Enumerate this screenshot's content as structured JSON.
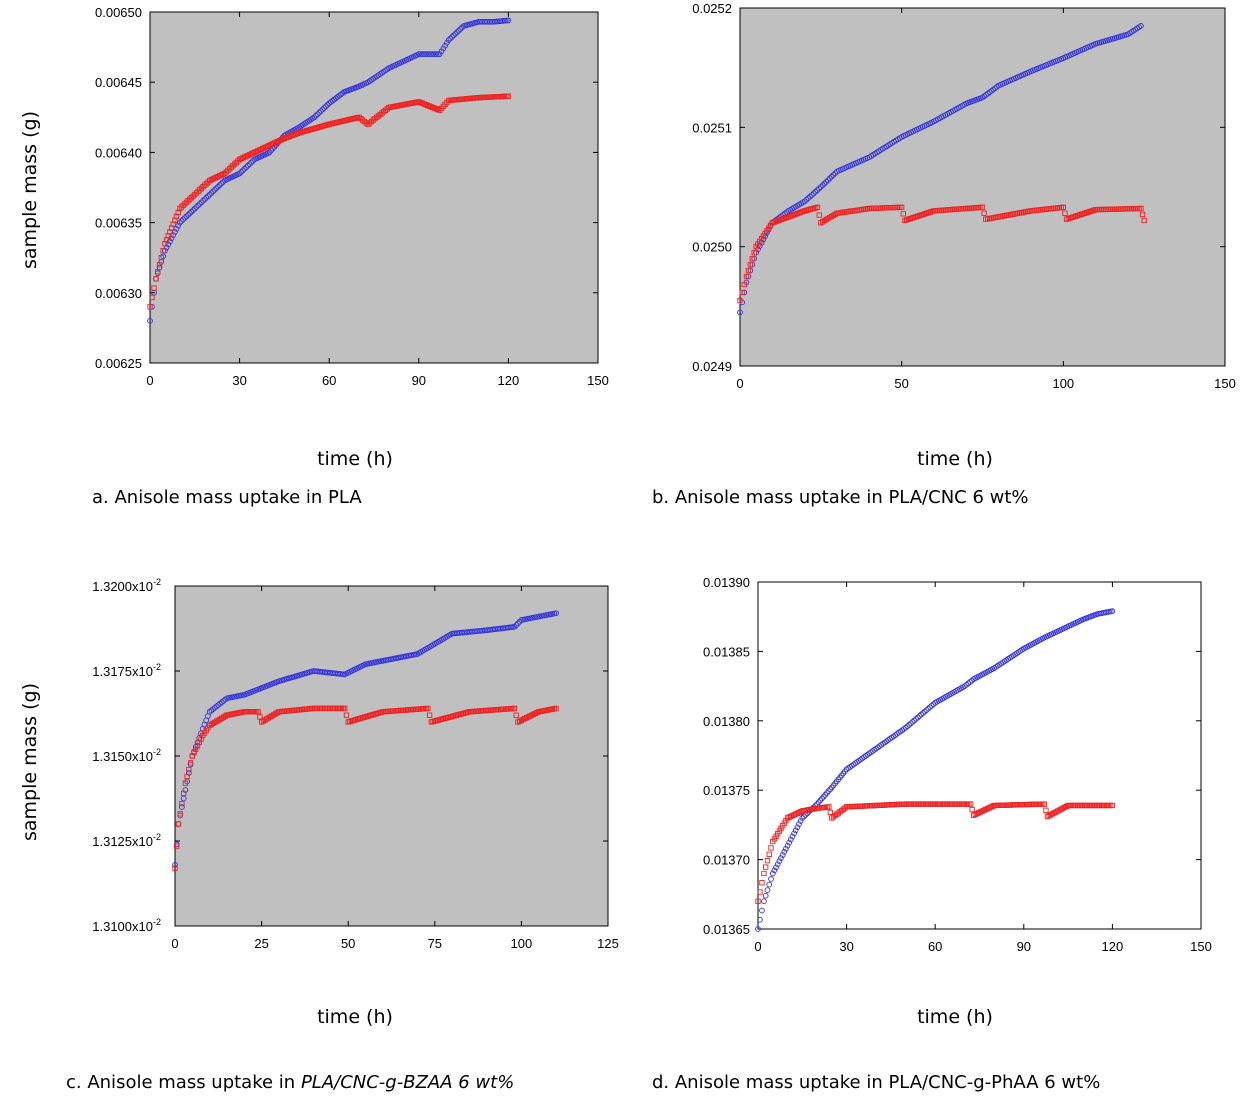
{
  "chart_data": [
    {
      "id": "a",
      "type": "scatter",
      "xlabel": "time (h)",
      "ylabel": "sample mass (g)",
      "xlim": [
        0,
        150
      ],
      "ylim": [
        0.00625,
        0.0065
      ],
      "xticks": [
        "0",
        "30",
        "60",
        "90",
        "120",
        "150"
      ],
      "yticks": [
        "0.00625",
        "0.00630",
        "0.00635",
        "0.00640",
        "0.00645",
        "0.00650"
      ],
      "background": "#c0c0c0",
      "caption_plain": "a. Anisole mass uptake in PLA",
      "caption_italic": "",
      "series": [
        {
          "color": "#3333dd",
          "marker": "circle",
          "points": [
            [
              0,
              0.00628
            ],
            [
              2,
              0.00631
            ],
            [
              5,
              0.00633
            ],
            [
              10,
              0.00635
            ],
            [
              15,
              0.00636
            ],
            [
              20,
              0.00637
            ],
            [
              25,
              0.00638
            ],
            [
              30,
              0.006385
            ],
            [
              35,
              0.006395
            ],
            [
              40,
              0.0064
            ],
            [
              45,
              0.006412
            ],
            [
              50,
              0.006418
            ],
            [
              55,
              0.006425
            ],
            [
              60,
              0.006435
            ],
            [
              65,
              0.006443
            ],
            [
              70,
              0.006447
            ],
            [
              73,
              0.00645
            ],
            [
              80,
              0.00646
            ],
            [
              90,
              0.00647
            ],
            [
              97,
              0.00647
            ],
            [
              100,
              0.00648
            ],
            [
              105,
              0.00649
            ],
            [
              110,
              0.006493
            ],
            [
              115,
              0.006493
            ],
            [
              120,
              0.006494
            ]
          ]
        },
        {
          "color": "#ee2222",
          "marker": "square",
          "points": [
            [
              0,
              0.00629
            ],
            [
              2,
              0.00631
            ],
            [
              5,
              0.006335
            ],
            [
              10,
              0.00636
            ],
            [
              15,
              0.00637
            ],
            [
              20,
              0.00638
            ],
            [
              25,
              0.006385
            ],
            [
              30,
              0.006395
            ],
            [
              35,
              0.0064
            ],
            [
              40,
              0.006405
            ],
            [
              45,
              0.00641
            ],
            [
              50,
              0.006414
            ],
            [
              60,
              0.00642
            ],
            [
              70,
              0.006425
            ],
            [
              73,
              0.00642
            ],
            [
              80,
              0.006432
            ],
            [
              90,
              0.006436
            ],
            [
              97,
              0.00643
            ],
            [
              100,
              0.006437
            ],
            [
              110,
              0.006439
            ],
            [
              120,
              0.00644
            ]
          ]
        }
      ]
    },
    {
      "id": "b",
      "type": "scatter",
      "xlabel": "time (h)",
      "ylabel": "",
      "xlim": [
        0,
        150
      ],
      "ylim": [
        0.0249,
        0.0252
      ],
      "xticks": [
        "0",
        "50",
        "100",
        "150"
      ],
      "yticks": [
        "0.0249",
        "0.0250",
        "0.0251",
        "0.0252"
      ],
      "background": "#c0c0c0",
      "caption_plain": "b. Anisole mass uptake in PLA/CNC 6 wt%",
      "caption_italic": "",
      "series": [
        {
          "color": "#3333dd",
          "marker": "circle",
          "points": [
            [
              0,
              0.024945
            ],
            [
              2,
              0.02497
            ],
            [
              5,
              0.024995
            ],
            [
              10,
              0.02502
            ],
            [
              15,
              0.02503
            ],
            [
              20,
              0.025038
            ],
            [
              25,
              0.02505
            ],
            [
              30,
              0.025063
            ],
            [
              40,
              0.025075
            ],
            [
              50,
              0.025092
            ],
            [
              60,
              0.025105
            ],
            [
              70,
              0.02512
            ],
            [
              75,
              0.025125
            ],
            [
              80,
              0.025135
            ],
            [
              90,
              0.025147
            ],
            [
              100,
              0.025158
            ],
            [
              110,
              0.02517
            ],
            [
              120,
              0.025178
            ],
            [
              124,
              0.025185
            ]
          ]
        },
        {
          "color": "#ee2222",
          "marker": "square",
          "points": [
            [
              0,
              0.024955
            ],
            [
              2,
              0.024975
            ],
            [
              5,
              0.025
            ],
            [
              10,
              0.02502
            ],
            [
              15,
              0.025025
            ],
            [
              20,
              0.02503
            ],
            [
              24,
              0.025033
            ],
            [
              25,
              0.02502
            ],
            [
              30,
              0.025028
            ],
            [
              40,
              0.025032
            ],
            [
              50,
              0.025033
            ],
            [
              51,
              0.025022
            ],
            [
              60,
              0.02503
            ],
            [
              75,
              0.025033
            ],
            [
              76,
              0.025023
            ],
            [
              90,
              0.02503
            ],
            [
              100,
              0.025033
            ],
            [
              101,
              0.025023
            ],
            [
              110,
              0.025031
            ],
            [
              124,
              0.025032
            ],
            [
              125,
              0.025022
            ]
          ]
        }
      ]
    },
    {
      "id": "c",
      "type": "scatter",
      "xlabel": "time (h)",
      "ylabel": "sample mass (g)",
      "xlim": [
        0,
        125
      ],
      "ylim": [
        0.0131,
        0.0132
      ],
      "xticks": [
        "0",
        "25",
        "50",
        "75",
        "100",
        "125"
      ],
      "yticks": [
        "1.3100x10",
        "1.3125x10",
        "1.3150x10",
        "1.3175x10",
        "1.3200x10"
      ],
      "ytick_exp": "-2",
      "background": "#c0c0c0",
      "caption_plain": "c. Anisole mass uptake in ",
      "caption_italic": "PLA/CNC-g-BZAA 6 wt%",
      "series": [
        {
          "color": "#3333dd",
          "marker": "circle",
          "points": [
            [
              0,
              0.013118
            ],
            [
              1,
              0.01313
            ],
            [
              3,
              0.01314
            ],
            [
              5,
              0.01315
            ],
            [
              8,
              0.013158
            ],
            [
              10,
              0.013163
            ],
            [
              15,
              0.013167
            ],
            [
              20,
              0.013168
            ],
            [
              25,
              0.01317
            ],
            [
              30,
              0.013172
            ],
            [
              40,
              0.013175
            ],
            [
              49,
              0.013174
            ],
            [
              55,
              0.013177
            ],
            [
              60,
              0.013178
            ],
            [
              70,
              0.01318
            ],
            [
              75,
              0.013183
            ],
            [
              80,
              0.013186
            ],
            [
              90,
              0.013187
            ],
            [
              98,
              0.013188
            ],
            [
              100,
              0.01319
            ],
            [
              105,
              0.013191
            ],
            [
              110,
              0.013192
            ]
          ]
        },
        {
          "color": "#ee2222",
          "marker": "square",
          "points": [
            [
              0,
              0.013117
            ],
            [
              1,
              0.01313
            ],
            [
              3,
              0.013142
            ],
            [
              5,
              0.01315
            ],
            [
              8,
              0.013156
            ],
            [
              10,
              0.013159
            ],
            [
              15,
              0.013162
            ],
            [
              20,
              0.013163
            ],
            [
              24,
              0.013163
            ],
            [
              25,
              0.01316
            ],
            [
              30,
              0.013163
            ],
            [
              40,
              0.013164
            ],
            [
              49,
              0.013164
            ],
            [
              50,
              0.01316
            ],
            [
              60,
              0.013163
            ],
            [
              73,
              0.013164
            ],
            [
              74,
              0.01316
            ],
            [
              85,
              0.013163
            ],
            [
              98,
              0.013164
            ],
            [
              99,
              0.01316
            ],
            [
              105,
              0.013163
            ],
            [
              110,
              0.013164
            ]
          ]
        }
      ]
    },
    {
      "id": "d",
      "type": "scatter",
      "xlabel": "time (h)",
      "ylabel": "",
      "xlim": [
        0,
        150
      ],
      "ylim": [
        0.01365,
        0.0139
      ],
      "xticks": [
        "0",
        "30",
        "60",
        "90",
        "120",
        "150"
      ],
      "yticks": [
        "0.01365",
        "0.01370",
        "0.01375",
        "0.01380",
        "0.01385",
        "0.01390"
      ],
      "background": "#ffffff",
      "caption_plain": "d. Anisole mass uptake in PLA/CNC-g-PhAA 6 wt%",
      "caption_italic": "",
      "series": [
        {
          "color": "#3333dd",
          "marker": "circle",
          "points": [
            [
              0,
              0.01365
            ],
            [
              2,
              0.01367
            ],
            [
              5,
              0.01369
            ],
            [
              10,
              0.01371
            ],
            [
              15,
              0.01373
            ],
            [
              20,
              0.01374
            ],
            [
              25,
              0.013752
            ],
            [
              30,
              0.013765
            ],
            [
              40,
              0.01378
            ],
            [
              50,
              0.013795
            ],
            [
              60,
              0.013813
            ],
            [
              70,
              0.013825
            ],
            [
              73,
              0.01383
            ],
            [
              80,
              0.013838
            ],
            [
              90,
              0.013852
            ],
            [
              97,
              0.01386
            ],
            [
              100,
              0.013863
            ],
            [
              110,
              0.013873
            ],
            [
              115,
              0.013877
            ],
            [
              120,
              0.013879
            ]
          ]
        },
        {
          "color": "#ee2222",
          "marker": "square",
          "points": [
            [
              0,
              0.01367
            ],
            [
              2,
              0.01369
            ],
            [
              5,
              0.013713
            ],
            [
              10,
              0.01373
            ],
            [
              15,
              0.013735
            ],
            [
              20,
              0.013737
            ],
            [
              24,
              0.013738
            ],
            [
              25,
              0.01373
            ],
            [
              30,
              0.013738
            ],
            [
              50,
              0.01374
            ],
            [
              72,
              0.01374
            ],
            [
              73,
              0.013732
            ],
            [
              80,
              0.013739
            ],
            [
              97,
              0.01374
            ],
            [
              98,
              0.013731
            ],
            [
              105,
              0.013739
            ],
            [
              120,
              0.013739
            ]
          ]
        }
      ]
    }
  ]
}
